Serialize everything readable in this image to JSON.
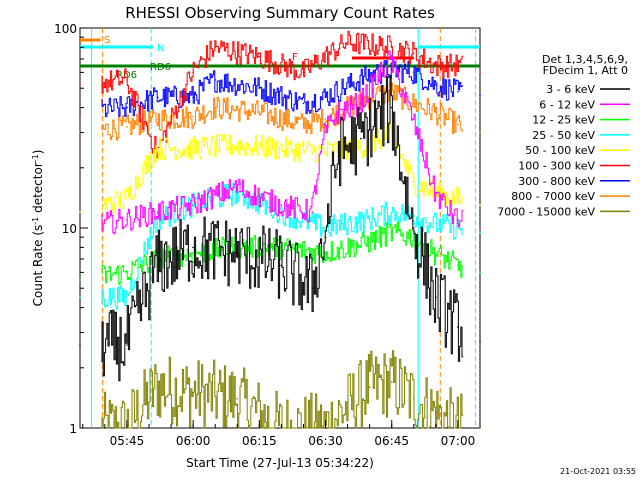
{
  "chart_data": {
    "type": "line",
    "title": "RHESSI Observing Summary Count Rates",
    "xlabel": "Start Time (27-Jul-13 05:34:22)",
    "ylabel": "Count Rate (s⁻¹ detector⁻¹)",
    "ylabel_main": "Count Rate (s",
    "ylabel_sup1": "-1",
    "ylabel_mid": " detector",
    "ylabel_sup2": "-1",
    "ylabel_end": ")",
    "y_scale": "log",
    "ylim": [
      1,
      100
    ],
    "xlim": [
      "05:34:22",
      "07:05:00"
    ],
    "x_ticks": [
      "05:45",
      "06:00",
      "06:15",
      "06:30",
      "06:45",
      "07:00"
    ],
    "y_ticks": [
      "1",
      "10",
      "100"
    ],
    "legend_position": "right",
    "legend_header": [
      "Det 1,3,4,5,6,9,",
      "FDecim 1, Att 0"
    ],
    "series": [
      {
        "name": "3 - 6 keV",
        "color": "#000000",
        "x": [
          "05:34:22",
          "05:45",
          "05:52",
          "06:00",
          "06:10",
          "06:20",
          "06:27",
          "06:30",
          "06:33",
          "06:38",
          "06:45",
          "06:50",
          "06:55",
          "07:00",
          "07:05"
        ],
        "y": [
          2.6,
          2.6,
          6.5,
          8.0,
          7.5,
          6.5,
          5.0,
          9.0,
          24,
          28,
          40,
          10,
          4.5,
          3.2,
          2.7
        ]
      },
      {
        "name": "6 - 12 keV",
        "color": "#ff00ff",
        "x": [
          "05:34:22",
          "05:45",
          "05:52",
          "06:00",
          "06:10",
          "06:20",
          "06:27",
          "06:30",
          "06:33",
          "06:38",
          "06:45",
          "06:50",
          "06:55",
          "07:00",
          "07:05"
        ],
        "y": [
          10,
          11,
          12,
          13,
          16,
          13,
          12,
          30,
          38,
          42,
          70,
          35,
          15,
          11,
          10
        ]
      },
      {
        "name": "12 - 25 keV",
        "color": "#00ff00",
        "x": [
          "05:34:22",
          "05:45",
          "05:52",
          "06:00",
          "06:10",
          "06:20",
          "06:30",
          "06:40",
          "06:45",
          "06:50",
          "06:55",
          "07:00",
          "07:05"
        ],
        "y": [
          5.5,
          6.0,
          7.0,
          7.5,
          8.0,
          8.0,
          7.5,
          8.5,
          9.5,
          9.0,
          7.5,
          6.5,
          6.0
        ]
      },
      {
        "name": "25 - 50 keV",
        "color": "#00ffff",
        "x": [
          "05:34:22",
          "05:45",
          "05:52",
          "06:00",
          "06:10",
          "06:20",
          "06:30",
          "06:40",
          "06:45",
          "06:50",
          "06:55",
          "07:00",
          "07:05"
        ],
        "y": [
          4.5,
          4.5,
          11,
          13,
          15,
          12,
          10,
          11,
          12,
          11.5,
          10.5,
          10,
          9.5
        ]
      },
      {
        "name": "50 - 100 keV",
        "color": "#ffff00",
        "x": [
          "05:34:22",
          "05:45",
          "05:52",
          "06:00",
          "06:10",
          "06:20",
          "06:30",
          "06:40",
          "06:45",
          "06:50",
          "06:55",
          "07:00",
          "07:05"
        ],
        "y": [
          12,
          14,
          25,
          25,
          26,
          25,
          24,
          26,
          30,
          17,
          15,
          14,
          13
        ]
      },
      {
        "name": "100 - 300 keV",
        "color": "#ff0000",
        "x": [
          "05:34:22",
          "05:45",
          "05:52",
          "06:00",
          "06:05",
          "06:15",
          "06:25",
          "06:35",
          "06:45",
          "06:50",
          "06:55",
          "07:00",
          "07:05"
        ],
        "y": [
          52,
          55,
          24,
          60,
          80,
          72,
          60,
          85,
          80,
          75,
          65,
          65,
          60
        ]
      },
      {
        "name": "300 - 800 keV",
        "color": "#0000ff",
        "x": [
          "05:34:22",
          "05:45",
          "05:52",
          "06:00",
          "06:05",
          "06:15",
          "06:25",
          "06:30",
          "06:40",
          "06:45",
          "06:50",
          "06:55",
          "07:00",
          "07:05"
        ],
        "y": [
          38,
          40,
          45,
          45,
          55,
          50,
          42,
          45,
          58,
          62,
          60,
          52,
          48,
          46
        ]
      },
      {
        "name": "800 - 7000 keV",
        "color": "#ff8000",
        "x": [
          "05:34:22",
          "05:45",
          "05:52",
          "06:00",
          "06:05",
          "06:15",
          "06:25",
          "06:30",
          "06:40",
          "06:45",
          "06:50",
          "06:55",
          "07:00",
          "07:05"
        ],
        "y": [
          30,
          32,
          35,
          36,
          40,
          38,
          33,
          35,
          45,
          48,
          42,
          38,
          33,
          30
        ]
      },
      {
        "name": "7000 - 15000 keV",
        "color": "#808000",
        "x": [
          "05:34:22",
          "05:45",
          "05:52",
          "06:00",
          "06:10",
          "06:20",
          "06:30",
          "06:40",
          "06:45",
          "06:50",
          "06:55",
          "07:00",
          "07:05"
        ],
        "y": [
          1,
          1,
          1.6,
          1.5,
          1.4,
          1,
          1,
          1.6,
          1.7,
          1.4,
          1.2,
          1,
          1
        ]
      }
    ],
    "annotations": [
      {
        "label": "S",
        "color": "#ff8000"
      },
      {
        "label": "N",
        "color": "#00ffff"
      },
      {
        "label": "RD6",
        "color": "#008000"
      },
      {
        "label": "RD6",
        "color": "#008000"
      },
      {
        "label": "F",
        "color": "#ff0000"
      }
    ],
    "timestamp": "21-Oct-2021 03:55"
  }
}
